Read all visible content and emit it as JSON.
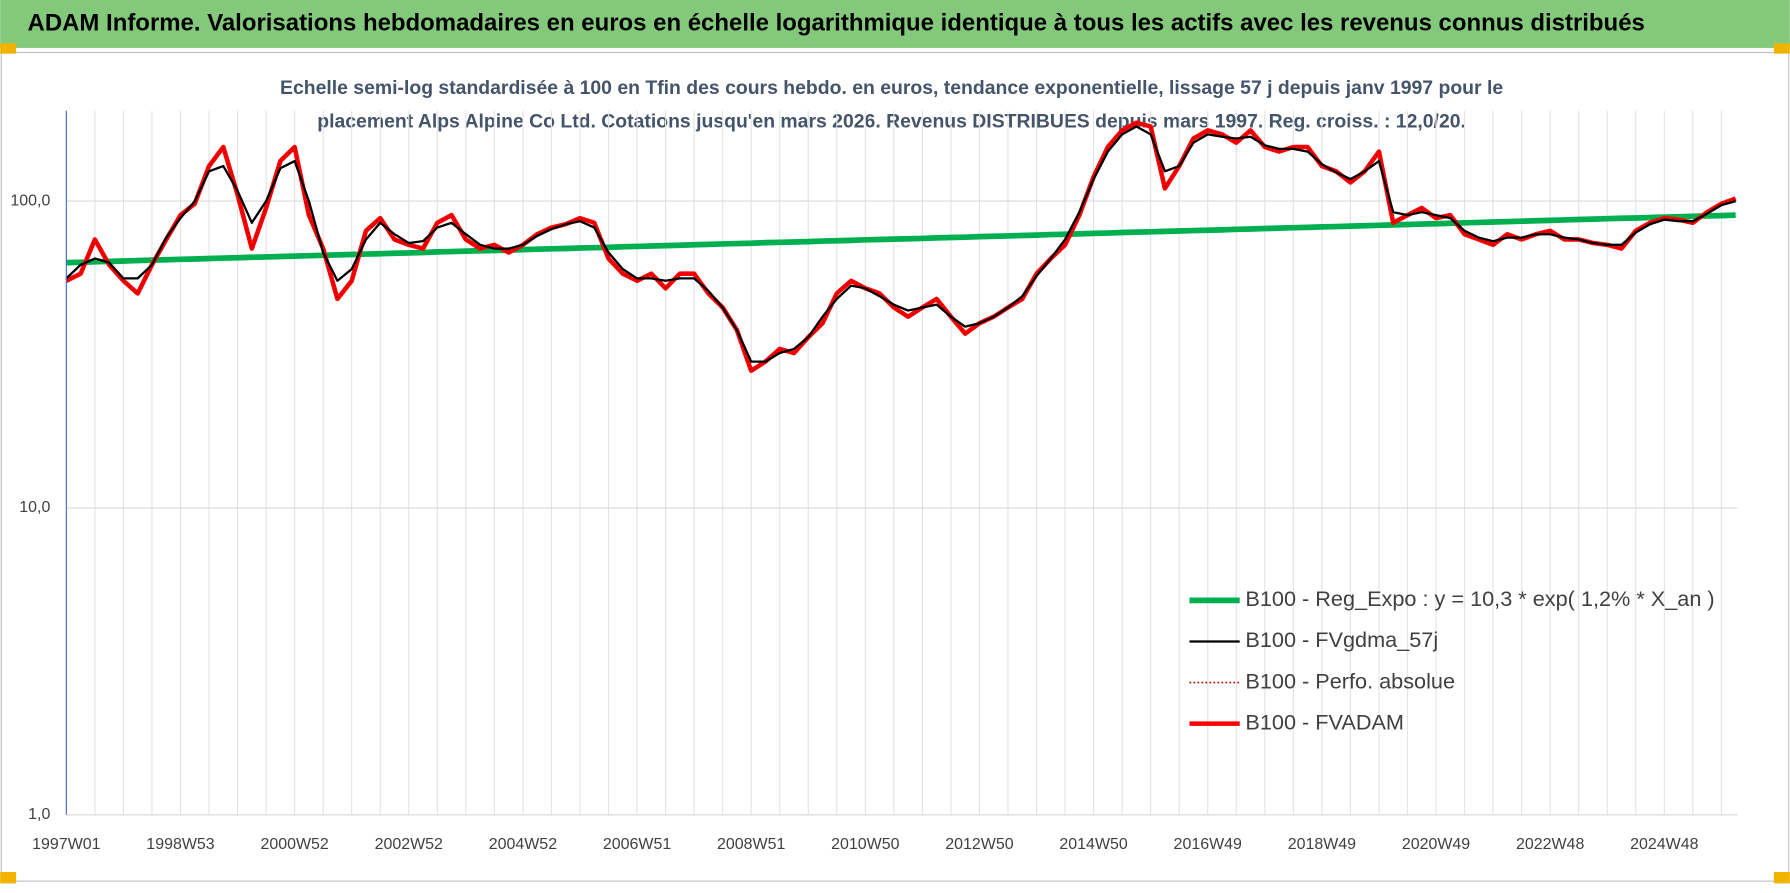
{
  "chart_data": {
    "type": "line",
    "header": "ADAM Informe. Valorisations hebdomadaires en euros en échelle logarithmique identique à tous les actifs avec les revenus connus distribués",
    "subtitle": [
      "Echelle semi-log standardisée à 100 en Tfin des cours hebdo. en euros, tendance exponentielle, lissage 57 j depuis janv 1997 pour le",
      "placement Alps Alpine Co Ltd. Cotations jusqu'en mars 2026. Revenus DISTRIBUES depuis mars 1997. Reg. croiss. : 12,0/20."
    ],
    "log_scale": true,
    "grid": true,
    "legend": "lower right",
    "ylim": [
      1,
      197
    ],
    "yticks": [
      {
        "value": 1,
        "label": "1,0"
      },
      {
        "value": 10,
        "label": "10,0"
      },
      {
        "value": 100,
        "label": "100,0"
      }
    ],
    "categories": [
      "1997W01",
      null,
      null,
      null,
      null,
      null,
      null,
      null,
      "1998W53",
      null,
      null,
      null,
      null,
      null,
      null,
      null,
      "2000W52",
      null,
      null,
      null,
      null,
      null,
      null,
      null,
      "2002W52",
      null,
      null,
      null,
      null,
      null,
      null,
      null,
      "2004W52",
      null,
      null,
      null,
      null,
      null,
      null,
      null,
      "2006W51",
      null,
      null,
      null,
      null,
      null,
      null,
      null,
      "2008W51",
      null,
      null,
      null,
      null,
      null,
      null,
      null,
      "2010W50",
      null,
      null,
      null,
      null,
      null,
      null,
      null,
      "2012W50",
      null,
      null,
      null,
      null,
      null,
      null,
      null,
      "2014W50",
      null,
      null,
      null,
      null,
      null,
      null,
      null,
      "2016W49",
      null,
      null,
      null,
      null,
      null,
      null,
      null,
      "2018W49",
      null,
      null,
      null,
      null,
      null,
      null,
      null,
      "2020W49",
      null,
      null,
      null,
      null,
      null,
      null,
      null,
      "2022W48",
      null,
      null,
      null,
      null,
      null,
      null,
      null,
      "2024W48",
      null,
      null,
      null,
      null,
      null
    ],
    "series": [
      {
        "name": "B100 - Reg_Expo : y = 10,3 * exp( 1,2% *  X_an )",
        "color": "#00b050",
        "style": "solid",
        "values": [
          63.0,
          63.2,
          63.4,
          63.6,
          63.8,
          64.0,
          64.2,
          64.4,
          64.6,
          64.8,
          65.0,
          65.2,
          65.4,
          65.6,
          65.8,
          66.0,
          66.2,
          66.4,
          66.6,
          66.8,
          67.0,
          67.2,
          67.4,
          67.6,
          67.8,
          68.0,
          68.3,
          68.5,
          68.7,
          68.9,
          69.0,
          69.2,
          69.5,
          69.7,
          69.9,
          70.1,
          70.3,
          70.5,
          70.7,
          71.0,
          71.2,
          71.4,
          71.6,
          71.8,
          72.1,
          72.3,
          72.5,
          72.7,
          72.9,
          73.2,
          73.4,
          73.6,
          73.8,
          74.1,
          74.3,
          74.5,
          74.8,
          75.0,
          75.2,
          75.4,
          75.6,
          75.9,
          76.1,
          76.3,
          76.6,
          76.8,
          77.0,
          77.3,
          77.5,
          77.8,
          78.0,
          78.2,
          78.5,
          78.7,
          79.0,
          79.2,
          79.4,
          79.7,
          79.9,
          80.2,
          80.4,
          80.6,
          80.9,
          81.1,
          81.4,
          81.6,
          81.9,
          82.1,
          82.4,
          82.6,
          82.9,
          83.1,
          83.4,
          83.7,
          83.9,
          84.2,
          84.4,
          84.7,
          85.0,
          85.2,
          85.5,
          85.7,
          86.0,
          86.3,
          86.5,
          86.8,
          87.1,
          87.3,
          87.6,
          87.9,
          88.1,
          88.4,
          88.7,
          88.9,
          89.2,
          89.5,
          89.7,
          90.0
        ]
      },
      {
        "name": "B100 - FVgdma_57j",
        "color": "#000000",
        "style": "solid",
        "values": [
          56,
          62,
          65,
          63,
          56,
          56,
          62,
          76,
          88,
          100,
          125,
          130,
          108,
          85,
          100,
          128,
          135,
          100,
          68,
          55,
          60,
          75,
          85,
          78,
          73,
          74,
          82,
          85,
          78,
          72,
          70,
          70,
          72,
          77,
          81,
          84,
          86,
          82,
          68,
          60,
          56,
          56,
          55,
          56,
          56,
          51,
          45,
          38,
          30,
          30,
          32,
          33,
          36,
          42,
          48,
          53,
          52,
          49,
          46,
          44,
          45,
          46,
          42,
          39,
          40,
          42,
          45,
          49,
          57,
          65,
          75,
          92,
          118,
          145,
          165,
          175,
          165,
          125,
          130,
          155,
          165,
          162,
          160,
          162,
          152,
          148,
          148,
          145,
          132,
          124,
          118,
          125,
          135,
          92,
          90,
          92,
          90,
          88,
          80,
          76,
          74,
          76,
          76,
          78,
          78,
          76,
          75,
          73,
          72,
          72,
          79,
          84,
          87,
          86,
          86,
          91,
          97,
          100
        ]
      },
      {
        "name": "B100 - Perfo. absolue",
        "color": "#c00000",
        "style": "dotted",
        "values": [
          55,
          58,
          75,
          62,
          55,
          50,
          62,
          75,
          90,
          98,
          130,
          150,
          105,
          70,
          95,
          135,
          150,
          90,
          70,
          48,
          55,
          80,
          88,
          75,
          72,
          70,
          85,
          90,
          75,
          70,
          72,
          68,
          72,
          78,
          82,
          84,
          88,
          85,
          65,
          58,
          55,
          58,
          52,
          58,
          58,
          50,
          45,
          38,
          28,
          30,
          33,
          32,
          36,
          40,
          50,
          55,
          52,
          50,
          45,
          42,
          45,
          48,
          42,
          37,
          40,
          42,
          45,
          48,
          58,
          65,
          72,
          90,
          120,
          150,
          170,
          180,
          175,
          110,
          130,
          160,
          170,
          165,
          155,
          170,
          150,
          145,
          150,
          150,
          130,
          125,
          115,
          125,
          145,
          85,
          90,
          95,
          88,
          90,
          78,
          75,
          72,
          78,
          75,
          78,
          80,
          75,
          75,
          73,
          72,
          70,
          80,
          85,
          88,
          87,
          85,
          92,
          98,
          102
        ]
      },
      {
        "name": "B100 - FVADAM",
        "color": "#ff0000",
        "style": "solid",
        "values": [
          55,
          58,
          75,
          62,
          55,
          50,
          62,
          75,
          90,
          98,
          130,
          150,
          105,
          70,
          95,
          135,
          150,
          90,
          70,
          48,
          55,
          80,
          88,
          75,
          72,
          70,
          85,
          90,
          75,
          70,
          72,
          68,
          72,
          78,
          82,
          84,
          88,
          85,
          65,
          58,
          55,
          58,
          52,
          58,
          58,
          50,
          45,
          38,
          28,
          30,
          33,
          32,
          36,
          40,
          50,
          55,
          52,
          50,
          45,
          42,
          45,
          48,
          42,
          37,
          40,
          42,
          45,
          48,
          58,
          65,
          72,
          90,
          120,
          150,
          170,
          180,
          175,
          110,
          130,
          160,
          170,
          165,
          155,
          170,
          150,
          145,
          150,
          150,
          130,
          125,
          115,
          125,
          145,
          85,
          90,
          95,
          88,
          90,
          78,
          75,
          72,
          78,
          75,
          78,
          80,
          75,
          75,
          73,
          72,
          70,
          80,
          85,
          88,
          87,
          85,
          92,
          98,
          102
        ]
      }
    ]
  }
}
